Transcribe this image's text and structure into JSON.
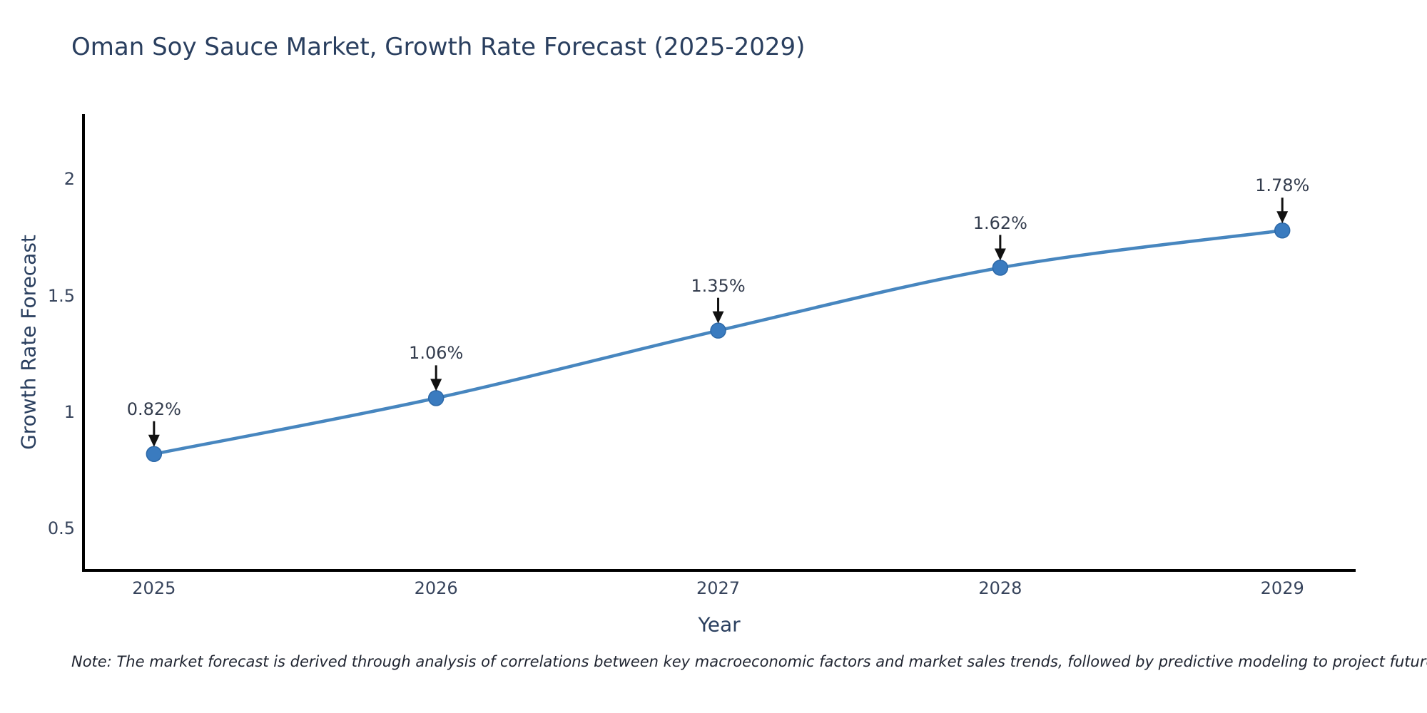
{
  "title": "Oman Soy Sauce Market, Growth Rate Forecast (2025-2029)",
  "note": "Note: The market forecast is derived through analysis of correlations between key macroeconomic factors and market sales trends, followed by predictive modeling to project future sales",
  "colors": {
    "line": "#4786bf",
    "marker_fill": "#3a7bbf",
    "marker_edge": "#2d69a8",
    "axis": "#000000",
    "arrow": "#111111",
    "text": "#2a3f5f"
  },
  "chart_data": {
    "type": "line",
    "title": "Oman Soy Sauce Market, Growth Rate Forecast (2025-2029)",
    "xlabel": "Year",
    "ylabel": "Growth Rate Forecast",
    "x": [
      2025,
      2026,
      2027,
      2028,
      2029
    ],
    "values": [
      0.82,
      1.06,
      1.35,
      1.62,
      1.78
    ],
    "point_labels": [
      "0.82%",
      "1.06%",
      "1.35%",
      "1.62%",
      "1.78%"
    ],
    "xtick_labels": [
      "2025",
      "2026",
      "2027",
      "2028",
      "2029"
    ],
    "yticks": [
      0.5,
      1,
      1.5,
      2
    ],
    "ytick_labels": [
      "0.5",
      "1",
      "1.5",
      "2"
    ],
    "xlim": [
      2024.75,
      2029.26
    ],
    "ylim": [
      0.32,
      2.28
    ],
    "grid": false,
    "legend_position": "none",
    "line_shape": "spline",
    "annotation_arrows": "black, pointing down onto each marker"
  }
}
